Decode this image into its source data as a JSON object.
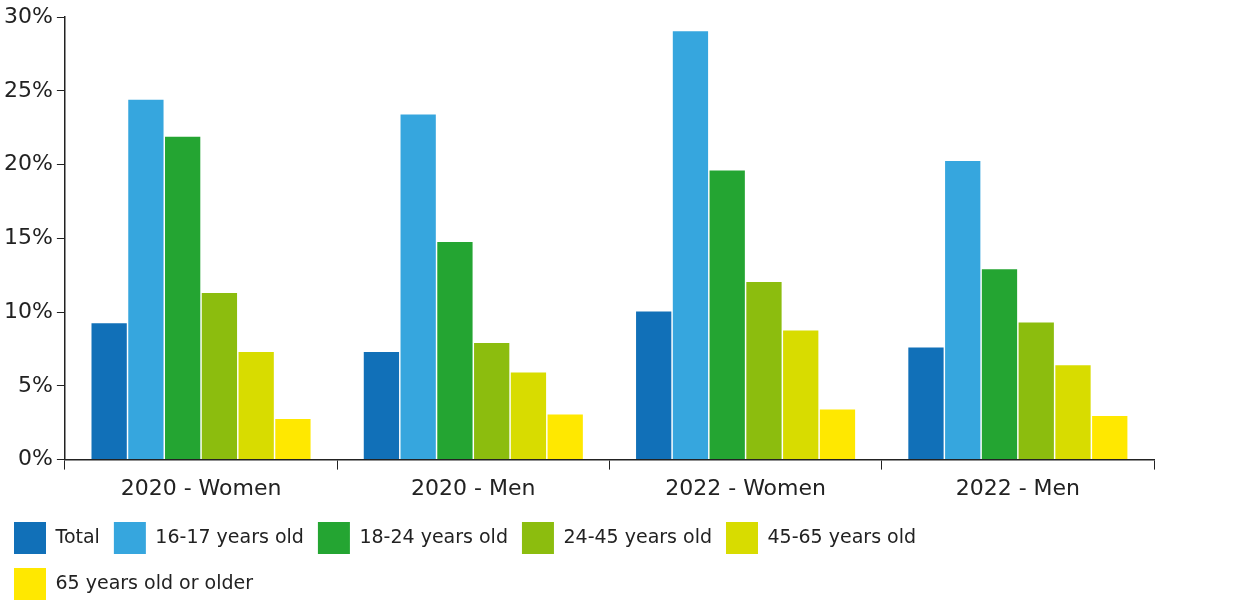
{
  "chart_data": {
    "type": "bar",
    "categories": [
      "2020 - Women",
      "2020 - Men",
      "2022 - Women",
      "2022 - Men"
    ],
    "series": [
      {
        "name": "Total",
        "color": "#1170b8",
        "values": [
          9.25,
          7.3,
          10.05,
          7.6
        ]
      },
      {
        "name": "16-17 years old",
        "color": "#36a6de",
        "values": [
          24.4,
          23.4,
          29.05,
          20.25
        ]
      },
      {
        "name": "18-24 years old",
        "color": "#24a532",
        "values": [
          21.9,
          14.75,
          19.6,
          12.9
        ]
      },
      {
        "name": "24-45 years old",
        "color": "#8cbd0e",
        "values": [
          11.3,
          7.9,
          12.05,
          9.3
        ]
      },
      {
        "name": "45-65 years old",
        "color": "#d8dc00",
        "values": [
          7.3,
          5.9,
          8.75,
          6.4
        ]
      },
      {
        "name": "65 years old or older",
        "color": "#ffe800",
        "values": [
          2.75,
          3.05,
          3.4,
          2.95
        ]
      }
    ],
    "ylim": [
      0,
      30
    ],
    "yticks": [
      {
        "value": 0,
        "label": "0%"
      },
      {
        "value": 5,
        "label": "5%"
      },
      {
        "value": 10,
        "label": "10%"
      },
      {
        "value": 15,
        "label": "15%"
      },
      {
        "value": 20,
        "label": "20%"
      },
      {
        "value": 25,
        "label": "25%"
      },
      {
        "value": 30,
        "label": "30%"
      }
    ],
    "grid": false,
    "legend": "bottom"
  }
}
